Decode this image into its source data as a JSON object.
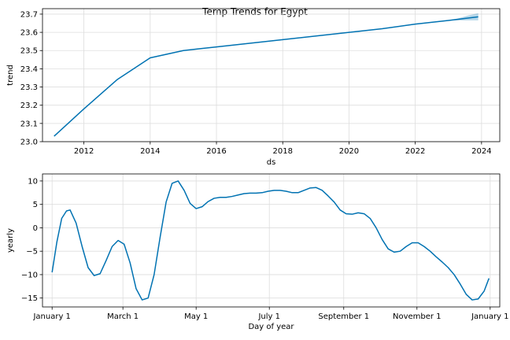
{
  "title": "Temp Trends for Egypt",
  "chart_data": [
    {
      "type": "line",
      "xlabel": "ds",
      "ylabel": "trend",
      "xlim": [
        2010.75,
        2024.55
      ],
      "ylim": [
        23.0,
        23.73
      ],
      "xticks": [
        2012,
        2014,
        2016,
        2018,
        2020,
        2022,
        2024
      ],
      "xtick_labels": [
        "2012",
        "2014",
        "2016",
        "2018",
        "2020",
        "2022",
        "2024"
      ],
      "yticks": [
        23.0,
        23.1,
        23.2,
        23.3,
        23.4,
        23.5,
        23.6,
        23.7
      ],
      "ytick_labels": [
        "23.0",
        "23.1",
        "23.2",
        "23.3",
        "23.4",
        "23.5",
        "23.6",
        "23.7"
      ],
      "grid": true,
      "series": [
        {
          "x": [
            2011.1,
            2012.0,
            2013.0,
            2013.5,
            2014.0,
            2014.5,
            2015.0,
            2015.5,
            2016.0,
            2017.0,
            2018.0,
            2019.0,
            2020.0,
            2021.0,
            2022.0,
            2023.0,
            2023.9
          ],
          "y": [
            23.03,
            23.18,
            23.34,
            23.4,
            23.46,
            23.48,
            23.5,
            23.51,
            23.52,
            23.54,
            23.56,
            23.58,
            23.6,
            23.62,
            23.645,
            23.665,
            23.685
          ]
        }
      ],
      "band": {
        "x": [
          2023.0,
          2023.3,
          2023.6,
          2023.9
        ],
        "lower": [
          23.665,
          23.665,
          23.666,
          23.666
        ],
        "upper": [
          23.665,
          23.677,
          23.693,
          23.705
        ]
      }
    },
    {
      "type": "line",
      "xlabel": "Day of year",
      "ylabel": "yearly",
      "xlim": [
        -8,
        373
      ],
      "ylim": [
        -16.9,
        11.5
      ],
      "xticks": [
        0,
        59,
        120,
        181,
        243,
        304,
        365
      ],
      "xtick_labels": [
        "January 1",
        "March 1",
        "May 1",
        "July 1",
        "September 1",
        "November 1",
        "January 1"
      ],
      "yticks": [
        10,
        5,
        0,
        -5,
        -10,
        -15
      ],
      "ytick_labels": [
        "10",
        "5",
        "0",
        "−5",
        "−10",
        "−15"
      ],
      "grid": true,
      "series": [
        {
          "x": [
            0,
            4,
            8,
            12,
            15,
            20,
            25,
            30,
            35,
            40,
            45,
            50,
            55,
            60,
            65,
            70,
            75,
            80,
            85,
            90,
            95,
            100,
            105,
            110,
            115,
            120,
            125,
            130,
            135,
            140,
            145,
            150,
            155,
            160,
            165,
            170,
            175,
            180,
            185,
            190,
            195,
            200,
            205,
            210,
            215,
            220,
            225,
            230,
            235,
            240,
            245,
            250,
            255,
            260,
            265,
            270,
            275,
            280,
            285,
            290,
            295,
            300,
            305,
            310,
            315,
            320,
            325,
            330,
            335,
            340,
            345,
            350,
            355,
            360,
            364
          ],
          "y": [
            -9.5,
            -3.0,
            2.0,
            3.6,
            3.8,
            1.0,
            -4.0,
            -8.5,
            -10.2,
            -9.8,
            -7.0,
            -4.0,
            -2.7,
            -3.5,
            -7.5,
            -13.0,
            -15.4,
            -15.0,
            -10.0,
            -2.0,
            5.5,
            9.5,
            10.0,
            8.0,
            5.2,
            4.1,
            4.5,
            5.6,
            6.3,
            6.5,
            6.5,
            6.7,
            7.0,
            7.3,
            7.4,
            7.4,
            7.5,
            7.8,
            8.0,
            8.0,
            7.8,
            7.5,
            7.5,
            8.0,
            8.5,
            8.6,
            8.0,
            6.8,
            5.5,
            3.8,
            3.0,
            2.9,
            3.2,
            3.0,
            2.0,
            0.0,
            -2.5,
            -4.5,
            -5.2,
            -5.0,
            -4.0,
            -3.2,
            -3.2,
            -4.0,
            -5.0,
            -6.2,
            -7.3,
            -8.5,
            -10.0,
            -12.0,
            -14.2,
            -15.4,
            -15.2,
            -13.5,
            -10.8
          ]
        }
      ]
    }
  ]
}
